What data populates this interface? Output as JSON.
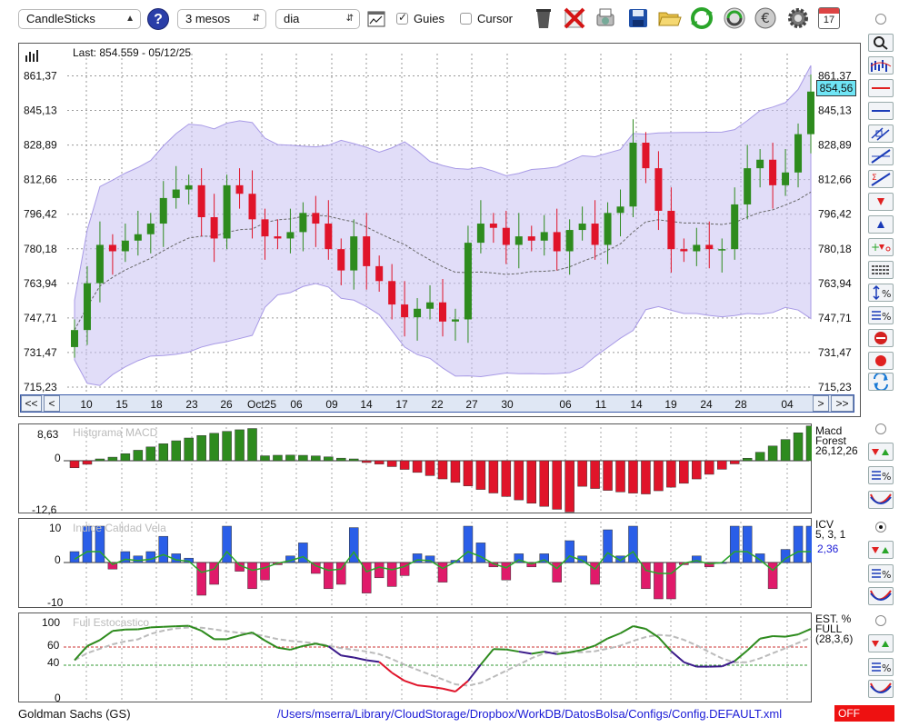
{
  "toolbar": {
    "chart_type": "CandleSticks",
    "period": "3 mesos",
    "interval": "dia",
    "guies_label": "Guies",
    "guies_checked": true,
    "cursor_label": "Cursor",
    "cursor_checked": false,
    "calendar_day": "17"
  },
  "main_chart": {
    "last_label": "Last: 854.559 - 05/12/25",
    "price_badge": "854,56",
    "y_ticks": [
      "861,37",
      "845,13",
      "828,89",
      "812,66",
      "796,42",
      "780,18",
      "763,94",
      "747,71",
      "731,47",
      "715,23"
    ],
    "y_values": [
      861.37,
      845.13,
      828.89,
      812.66,
      796.42,
      780.18,
      763.94,
      747.71,
      731.47,
      715.23
    ],
    "x_labels": [
      "10",
      "15",
      "18",
      "23",
      "26",
      "Oct25",
      "06",
      "09",
      "14",
      "17",
      "22",
      "27",
      "30",
      "06",
      "11",
      "14",
      "19",
      "24",
      "28",
      "04"
    ],
    "nav_buttons": [
      "<<",
      "<",
      ">",
      ">>"
    ]
  },
  "macd": {
    "title": "Histgrama MACD",
    "label_line1": "Macd",
    "label_line2": "Forest",
    "label_line3": "26,12,26",
    "y_ticks": [
      "8,63",
      "0",
      "-12,6"
    ]
  },
  "icv": {
    "title": "Indice Calidad Vela",
    "label_line1": "ICV",
    "label_line2": "5, 3, 1",
    "value": "2,36",
    "y_ticks": [
      "10",
      "0",
      "-10"
    ]
  },
  "stoch": {
    "title": "Full Estocastico",
    "label_line1": "EST. %",
    "label_line2": "FULL",
    "label_line3": "(28,3,6)",
    "y_ticks": [
      "100",
      "60",
      "40",
      "0"
    ]
  },
  "status": {
    "ticker": "Goldman Sachs (GS)",
    "path": "/Users/mserra/Library/CloudStorage/Dropbox/WorkDB/DatosBolsa/Configs/Config.DEFAULT.xml",
    "state": "OFF"
  },
  "colors": {
    "up": "#2e8b1e",
    "down": "#e0142a",
    "band": "#c9c1f2",
    "accent": "#1a1ad6"
  },
  "chart_data": [
    {
      "type": "candlestick",
      "title": "Last: 854.559 - 05/12/25",
      "ylim": [
        715.23,
        877.6
      ],
      "closes": [
        742,
        764,
        782,
        779,
        784,
        787,
        792,
        804,
        808,
        810,
        795,
        785,
        810,
        806,
        794,
        786,
        785,
        788,
        797,
        792,
        780,
        770,
        786,
        772,
        765,
        754,
        748,
        752,
        755,
        746,
        747,
        783,
        792,
        790,
        782,
        786,
        784,
        788,
        779,
        789,
        792,
        782,
        797,
        800,
        830,
        818,
        798,
        780,
        779,
        782,
        780,
        780,
        801,
        818,
        822,
        810,
        816,
        834,
        854
      ]
    },
    {
      "type": "bar",
      "title": "Histgrama MACD",
      "ylim": [
        -12.6,
        8.63
      ]
    },
    {
      "type": "bar",
      "title": "Indice Calidad Vela",
      "ylim": [
        -10,
        10
      ]
    },
    {
      "type": "line",
      "title": "Full Estocastico",
      "ylim": [
        0,
        100
      ]
    }
  ]
}
